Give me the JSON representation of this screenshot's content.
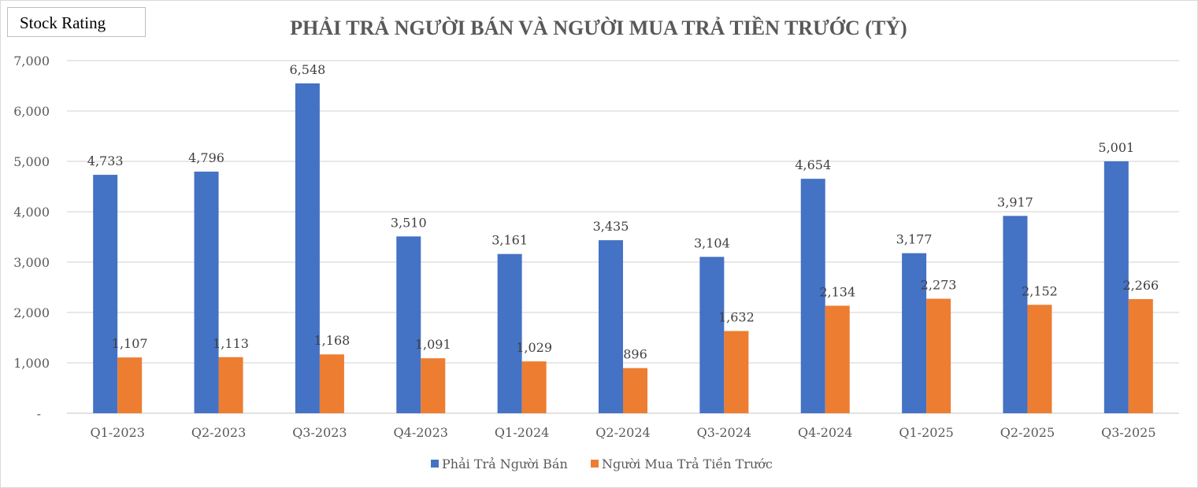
{
  "badge": "Stock Rating",
  "chart_data": {
    "type": "bar",
    "title": "PHẢI TRẢ NGƯỜI BÁN VÀ NGƯỜI MUA TRẢ TIỀN TRƯỚC (TỶ)",
    "xlabel": "",
    "ylabel": "",
    "ylim": [
      0,
      7000
    ],
    "yticks": [
      0,
      1000,
      2000,
      3000,
      4000,
      5000,
      6000,
      7000
    ],
    "ytick_labels": [
      "-",
      "1,000",
      "2,000",
      "3,000",
      "4,000",
      "5,000",
      "6,000",
      "7,000"
    ],
    "grid": true,
    "legend": "bottom",
    "categories": [
      "Q1-2023",
      "Q2-2023",
      "Q3-2023",
      "Q4-2023",
      "Q1-2024",
      "Q2-2024",
      "Q3-2024",
      "Q4-2024",
      "Q1-2025",
      "Q2-2025",
      "Q3-2025"
    ],
    "series": [
      {
        "name": "Phải Trả Người Bán",
        "color": "#4472c4",
        "values": [
          4733,
          4796,
          6548,
          3510,
          3161,
          3435,
          3104,
          4654,
          3177,
          3917,
          5001
        ]
      },
      {
        "name": "Người Mua Trả Tiền Trước",
        "color": "#ed7d31",
        "values": [
          1107,
          1113,
          1168,
          1091,
          1029,
          896,
          1632,
          2134,
          2273,
          2152,
          2266
        ]
      }
    ]
  }
}
